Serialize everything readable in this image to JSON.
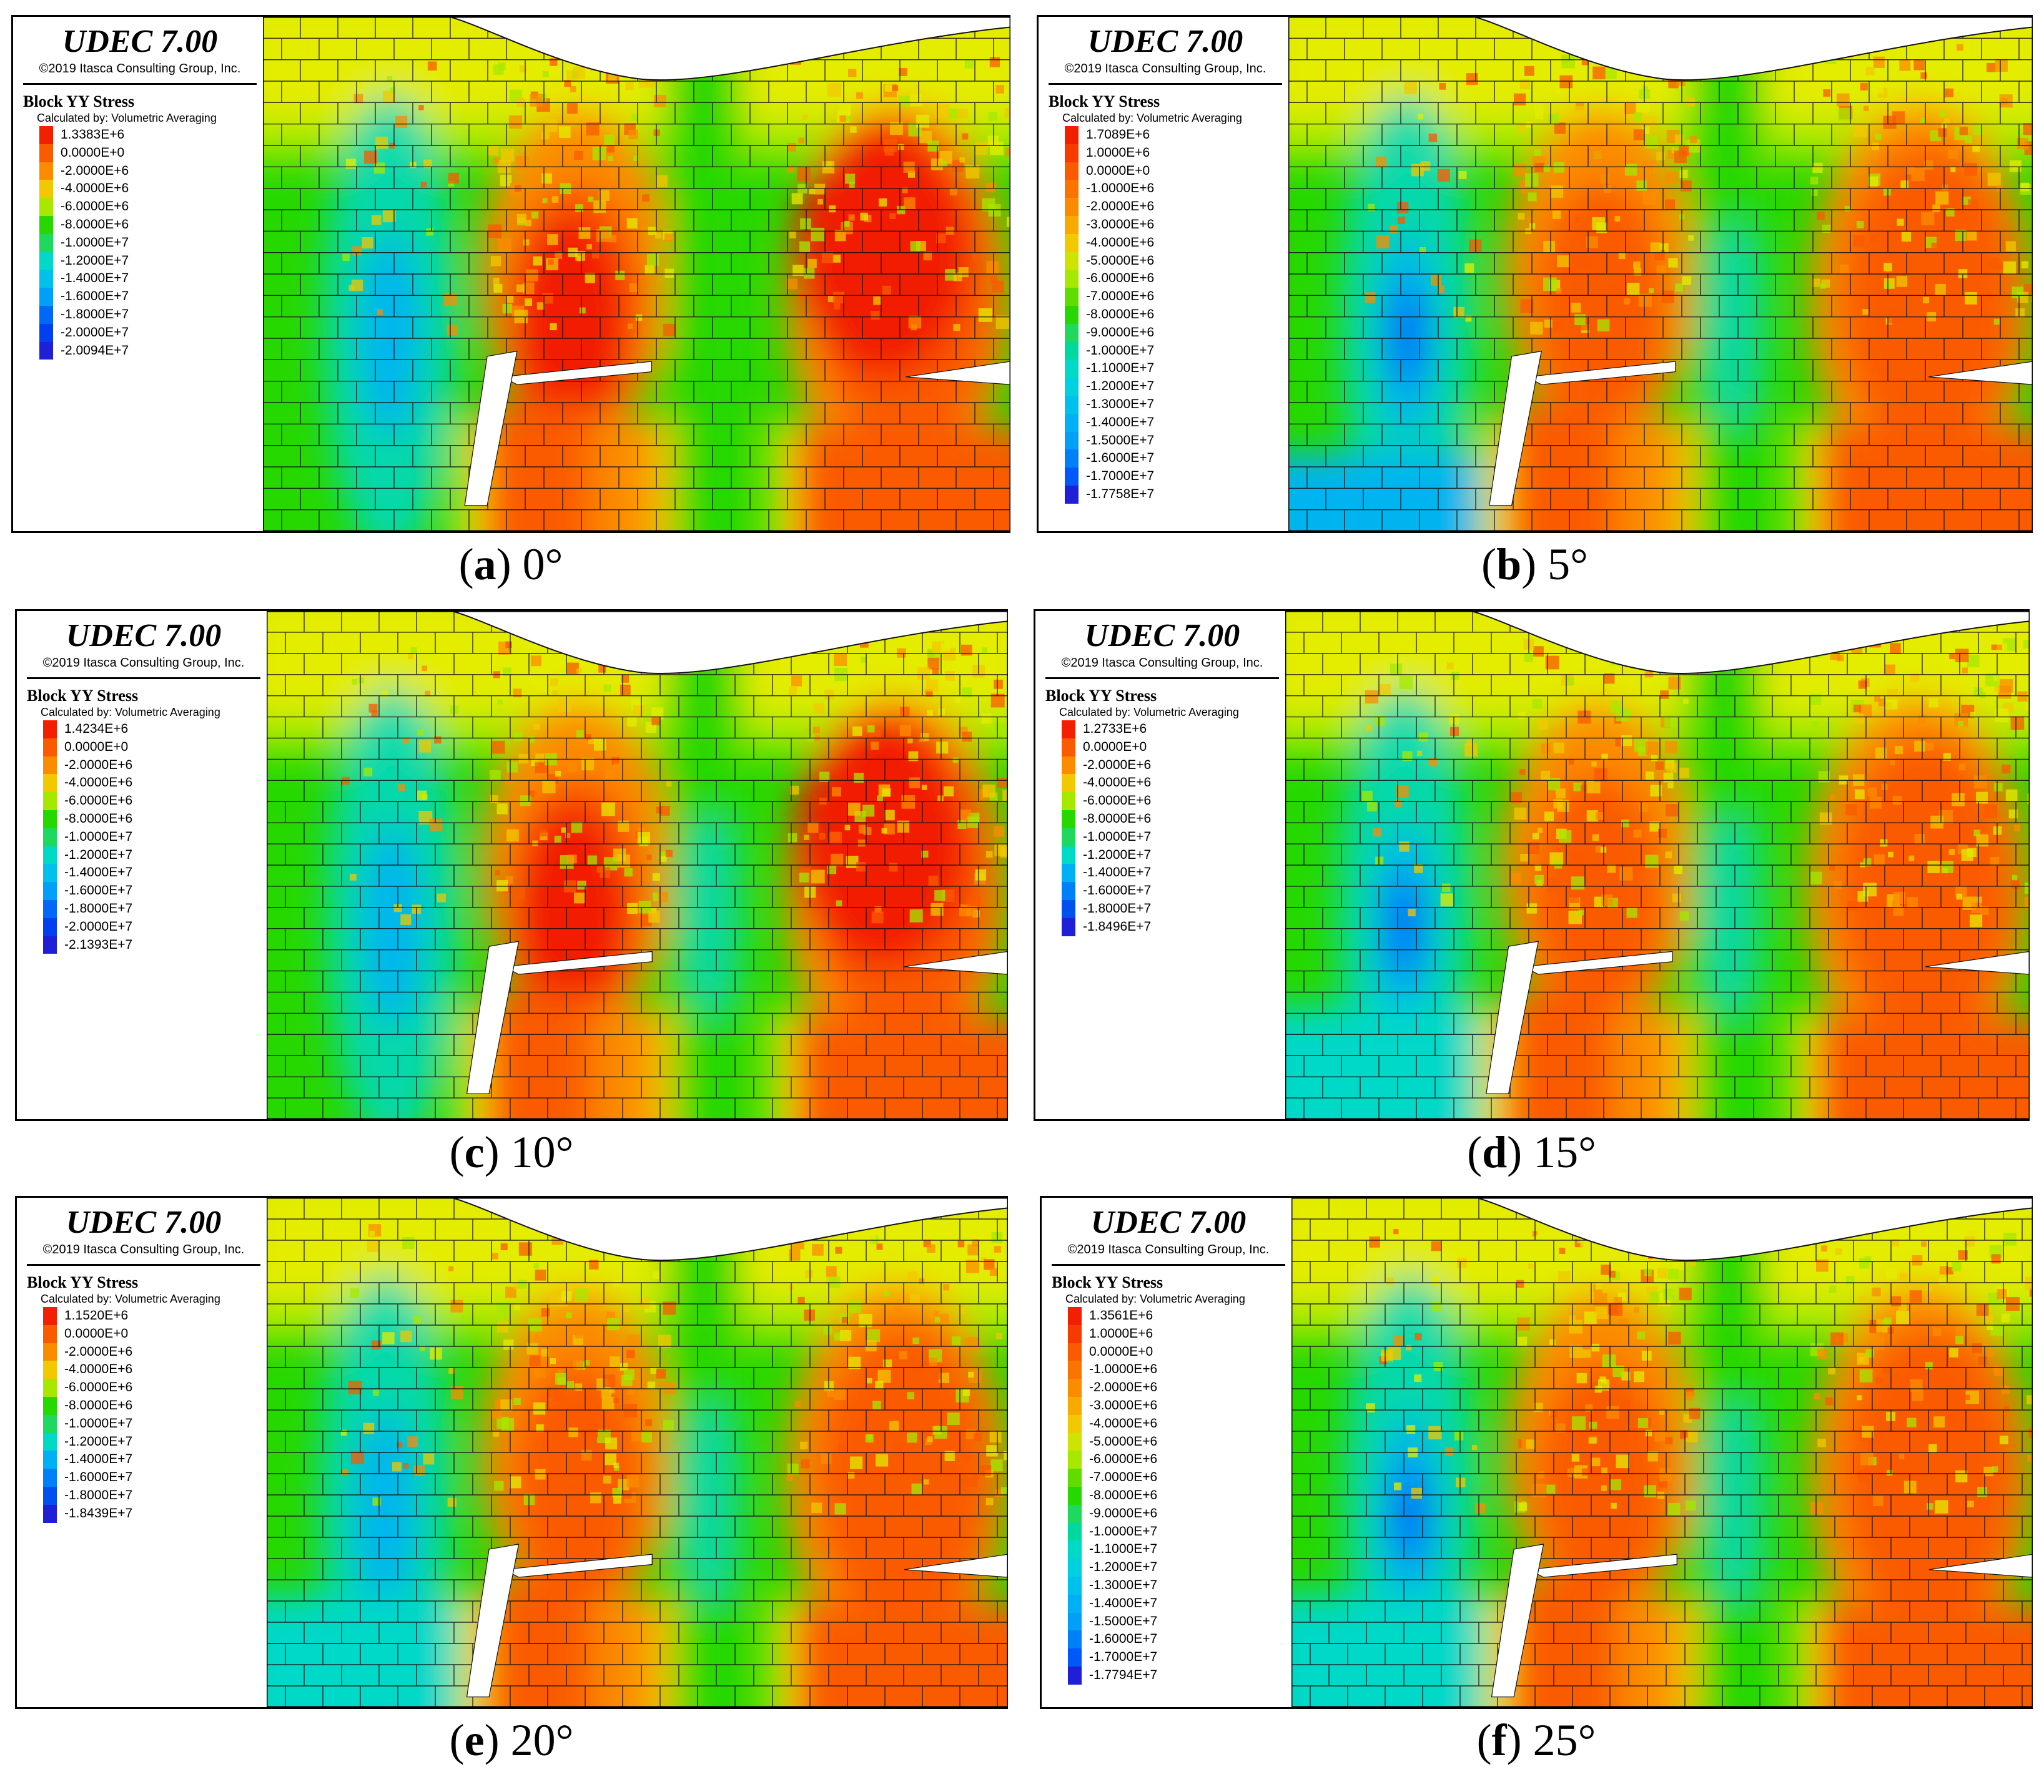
{
  "udec_title": "UDEC 7.00",
  "copyright": "©2019 Itasca Consulting Group, Inc.",
  "stress_title": "Block YY Stress",
  "calc_text": "Calculated by:  Volumetric Averaging",
  "colors": {
    "red": "#f21f00",
    "red_orange": "#fa5a00",
    "orange": "#fb8c00",
    "yellow_orange": "#f2c800",
    "yellow": "#e4ec00",
    "yellow_green": "#a6e800",
    "green": "#27d800",
    "cyan": "#00d8c8",
    "light_blue": "#00b4f0",
    "blue": "#0058f8",
    "dark_blue": "#1f1fd8"
  },
  "panels": [
    {
      "letter": "a",
      "caption": "0°",
      "legend": [
        {
          "label": "1.3383E+6",
          "color": "#f21f00"
        },
        {
          "label": "0.0000E+0",
          "color": "#fa5a00"
        },
        {
          "label": "-2.0000E+6",
          "color": "#fb8c00"
        },
        {
          "label": "-4.0000E+6",
          "color": "#f2c800"
        },
        {
          "label": "-6.0000E+6",
          "color": "#a6e800"
        },
        {
          "label": "-8.0000E+6",
          "color": "#27d800"
        },
        {
          "label": "-1.0000E+7",
          "color": "#1fd860"
        },
        {
          "label": "-1.2000E+7",
          "color": "#00d8c8"
        },
        {
          "label": "-1.4000E+7",
          "color": "#00c0ec"
        },
        {
          "label": "-1.6000E+7",
          "color": "#00a0f8"
        },
        {
          "label": "-1.8000E+7",
          "color": "#0068f8"
        },
        {
          "label": "-2.0000E+7",
          "color": "#0040f0"
        },
        {
          "label": "-2.0094E+7",
          "color": "#1f1fd8"
        }
      ]
    },
    {
      "letter": "b",
      "caption": "5°",
      "legend": [
        {
          "label": "1.7089E+6",
          "color": "#f21f00"
        },
        {
          "label": "1.0000E+6",
          "color": "#f63a00"
        },
        {
          "label": "0.0000E+0",
          "color": "#fa5a00"
        },
        {
          "label": "-1.0000E+6",
          "color": "#fb7400"
        },
        {
          "label": "-2.0000E+6",
          "color": "#fb8c00"
        },
        {
          "label": "-3.0000E+6",
          "color": "#f7aa00"
        },
        {
          "label": "-4.0000E+6",
          "color": "#f2c800"
        },
        {
          "label": "-5.0000E+6",
          "color": "#cde400"
        },
        {
          "label": "-6.0000E+6",
          "color": "#a6e800"
        },
        {
          "label": "-7.0000E+6",
          "color": "#60dc00"
        },
        {
          "label": "-8.0000E+6",
          "color": "#27d800"
        },
        {
          "label": "-9.0000E+6",
          "color": "#1fd860"
        },
        {
          "label": "-1.0000E+7",
          "color": "#00d8a0"
        },
        {
          "label": "-1.1000E+7",
          "color": "#00d8c8"
        },
        {
          "label": "-1.2000E+7",
          "color": "#00d0e0"
        },
        {
          "label": "-1.3000E+7",
          "color": "#00c0ec"
        },
        {
          "label": "-1.4000E+7",
          "color": "#00b0f4"
        },
        {
          "label": "-1.5000E+7",
          "color": "#00a0f8"
        },
        {
          "label": "-1.6000E+7",
          "color": "#0080f8"
        },
        {
          "label": "-1.7000E+7",
          "color": "#0058f8"
        },
        {
          "label": "-1.7758E+7",
          "color": "#1f1fd8"
        }
      ]
    },
    {
      "letter": "c",
      "caption": "10°",
      "legend": [
        {
          "label": "1.4234E+6",
          "color": "#f21f00"
        },
        {
          "label": "0.0000E+0",
          "color": "#fa5a00"
        },
        {
          "label": "-2.0000E+6",
          "color": "#fb8c00"
        },
        {
          "label": "-4.0000E+6",
          "color": "#f2c800"
        },
        {
          "label": "-6.0000E+6",
          "color": "#a6e800"
        },
        {
          "label": "-8.0000E+6",
          "color": "#27d800"
        },
        {
          "label": "-1.0000E+7",
          "color": "#1fd860"
        },
        {
          "label": "-1.2000E+7",
          "color": "#00d8c8"
        },
        {
          "label": "-1.4000E+7",
          "color": "#00c0ec"
        },
        {
          "label": "-1.6000E+7",
          "color": "#00a0f8"
        },
        {
          "label": "-1.8000E+7",
          "color": "#0068f8"
        },
        {
          "label": "-2.0000E+7",
          "color": "#0040f0"
        },
        {
          "label": "-2.1393E+7",
          "color": "#1f1fd8"
        }
      ]
    },
    {
      "letter": "d",
      "caption": "15°",
      "legend": [
        {
          "label": "1.2733E+6",
          "color": "#f21f00"
        },
        {
          "label": "0.0000E+0",
          "color": "#fa5a00"
        },
        {
          "label": "-2.0000E+6",
          "color": "#fb8c00"
        },
        {
          "label": "-4.0000E+6",
          "color": "#f2c800"
        },
        {
          "label": "-6.0000E+6",
          "color": "#a6e800"
        },
        {
          "label": "-8.0000E+6",
          "color": "#27d800"
        },
        {
          "label": "-1.0000E+7",
          "color": "#1fd860"
        },
        {
          "label": "-1.2000E+7",
          "color": "#00d8c8"
        },
        {
          "label": "-1.4000E+7",
          "color": "#00b0f4"
        },
        {
          "label": "-1.6000E+7",
          "color": "#0080f8"
        },
        {
          "label": "-1.8000E+7",
          "color": "#0050f0"
        },
        {
          "label": "-1.8496E+7",
          "color": "#1f1fd8"
        }
      ]
    },
    {
      "letter": "e",
      "caption": "20°",
      "legend": [
        {
          "label": "1.1520E+6",
          "color": "#f21f00"
        },
        {
          "label": "0.0000E+0",
          "color": "#fa5a00"
        },
        {
          "label": "-2.0000E+6",
          "color": "#fb8c00"
        },
        {
          "label": "-4.0000E+6",
          "color": "#f2c800"
        },
        {
          "label": "-6.0000E+6",
          "color": "#a6e800"
        },
        {
          "label": "-8.0000E+6",
          "color": "#27d800"
        },
        {
          "label": "-1.0000E+7",
          "color": "#1fd860"
        },
        {
          "label": "-1.2000E+7",
          "color": "#00d8c8"
        },
        {
          "label": "-1.4000E+7",
          "color": "#00b0f4"
        },
        {
          "label": "-1.6000E+7",
          "color": "#0080f8"
        },
        {
          "label": "-1.8000E+7",
          "color": "#0050f0"
        },
        {
          "label": "-1.8439E+7",
          "color": "#1f1fd8"
        }
      ]
    },
    {
      "letter": "f",
      "caption": "25°",
      "legend": [
        {
          "label": "1.3561E+6",
          "color": "#f21f00"
        },
        {
          "label": "1.0000E+6",
          "color": "#f63a00"
        },
        {
          "label": "0.0000E+0",
          "color": "#fa5a00"
        },
        {
          "label": "-1.0000E+6",
          "color": "#fb7400"
        },
        {
          "label": "-2.0000E+6",
          "color": "#fb8c00"
        },
        {
          "label": "-3.0000E+6",
          "color": "#f7aa00"
        },
        {
          "label": "-4.0000E+6",
          "color": "#f2c800"
        },
        {
          "label": "-5.0000E+6",
          "color": "#cde400"
        },
        {
          "label": "-6.0000E+6",
          "color": "#a6e800"
        },
        {
          "label": "-7.0000E+6",
          "color": "#60dc00"
        },
        {
          "label": "-8.0000E+6",
          "color": "#27d800"
        },
        {
          "label": "-9.0000E+6",
          "color": "#1fd860"
        },
        {
          "label": "-1.0000E+7",
          "color": "#00d8a0"
        },
        {
          "label": "-1.1000E+7",
          "color": "#00d8c8"
        },
        {
          "label": "-1.2000E+7",
          "color": "#00d0e0"
        },
        {
          "label": "-1.3000E+7",
          "color": "#00c0ec"
        },
        {
          "label": "-1.4000E+7",
          "color": "#00b0f4"
        },
        {
          "label": "-1.5000E+7",
          "color": "#00a0f8"
        },
        {
          "label": "-1.6000E+7",
          "color": "#0080f8"
        },
        {
          "label": "-1.7000E+7",
          "color": "#0058f8"
        },
        {
          "label": "-1.7794E+7",
          "color": "#1f1fd8"
        }
      ]
    }
  ]
}
